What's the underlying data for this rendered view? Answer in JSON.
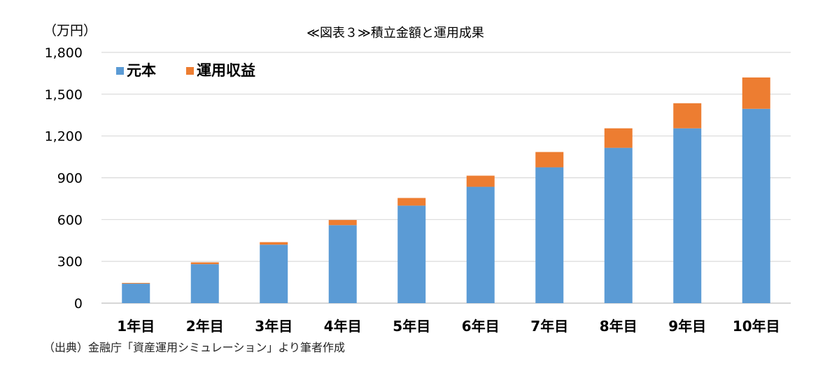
{
  "chart_data": {
    "type": "bar",
    "stacked": true,
    "title": "≪図表３≫積立金額と運用成果",
    "unit_label": "（万円）",
    "categories": [
      "1年目",
      "2年目",
      "3年目",
      "4年目",
      "5年目",
      "6年目",
      "7年目",
      "8年目",
      "9年目",
      "10年目"
    ],
    "series": [
      {
        "name": "元本",
        "color": "#5b9bd5",
        "values": [
          140,
          280,
          420,
          560,
          700,
          835,
          975,
          1115,
          1255,
          1395
        ]
      },
      {
        "name": "運用収益",
        "color": "#ed7d31",
        "values": [
          5,
          13,
          18,
          37,
          55,
          80,
          110,
          140,
          180,
          225
        ]
      }
    ],
    "ylim": [
      0,
      1800
    ],
    "yticks": [
      "0",
      "300",
      "600",
      "900",
      "1,200",
      "1,500",
      "1,800"
    ],
    "grid": true,
    "legend_position": "top-left"
  },
  "source": "（出典）金融庁「資産運用シミュレーション」より筆者作成"
}
